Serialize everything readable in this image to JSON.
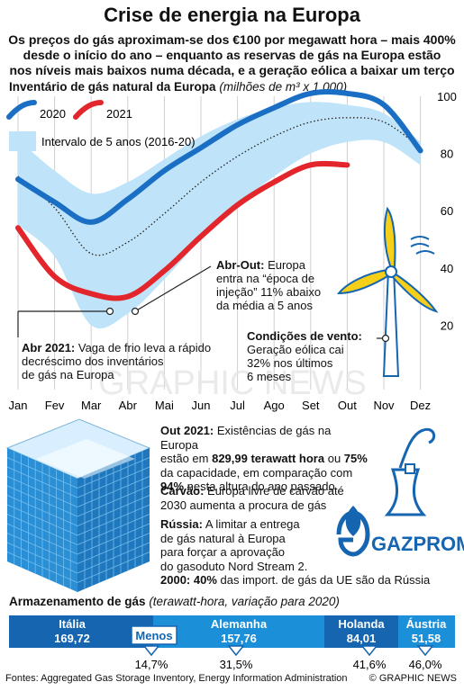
{
  "header": {
    "title": "Crise de energia na Europa",
    "subtitle_lines": [
      "Os preços do gás aproximam-se dos €100 por megawatt hora – mais 400%",
      "desde o início do ano – enquanto as reservas de gás na Europa estão",
      "nos níveis mais baixos numa década, e a geração eólica a baixar um terço"
    ]
  },
  "chart_data": {
    "type": "line",
    "title": "Inventário de gás natural da Europa",
    "unit": "(milhões de m³ x 1.000)",
    "categories": [
      "Jan",
      "Fev",
      "Mar",
      "Abr",
      "Mai",
      "Jun",
      "Jul",
      "Ago",
      "Set",
      "Out",
      "Nov",
      "Dez"
    ],
    "ylim": [
      0,
      100
    ],
    "yticks": [
      20,
      40,
      60,
      80,
      100
    ],
    "series": [
      {
        "name": "2020",
        "color": "#1a6fc4",
        "values": [
          71,
          63,
          56,
          64,
          74,
          82,
          90,
          96,
          101,
          101,
          97,
          81
        ]
      },
      {
        "name": "2021",
        "color": "#e3262b",
        "values": [
          54,
          37,
          31,
          30,
          39,
          51,
          62,
          70,
          76,
          76,
          null,
          null
        ]
      },
      {
        "name": "Intervalo de 5 anos (2016-20)",
        "color": "#bfe3f8",
        "type": "band",
        "upper": [
          85,
          74,
          66,
          70,
          78,
          86,
          92,
          96,
          98,
          97,
          94,
          84
        ],
        "lower": [
          55,
          44,
          20,
          24,
          36,
          50,
          62,
          72,
          80,
          84,
          84,
          76
        ]
      }
    ]
  },
  "legend": {
    "s2020": "2020",
    "s2021": "2021",
    "band": "Intervalo de 5 anos (2016-20)"
  },
  "annotations": {
    "abr_out": {
      "label": "Abr-Out:",
      "lines": [
        "Europa",
        "entra na “época de",
        "injeção” 11% abaixo",
        "da média a 5 anos"
      ],
      "first": "Europa"
    },
    "abr2021": {
      "label": "Abr 2021:",
      "lines": [
        " Vaga de frio leva a rápido",
        "decréscimo dos inventários",
        "de gás na Europa"
      ]
    },
    "vento": {
      "label": "Condições de vento:",
      "lines": [
        "Geração eólica cai",
        "32% nos últimos",
        "6 meses"
      ]
    }
  },
  "info": {
    "out2021": {
      "label": "Out 2021:",
      "lines": [
        " Existências de gás na Europa",
        "estão em ",
        "829,99 terawatt hora",
        " ou ",
        "75%",
        "da capacidade, em comparação com",
        "94%",
        " nesta altura do ano passado"
      ]
    },
    "carvao": {
      "label": "Carvão:",
      "lines": [
        " Europa livre de carvão até",
        "2030 aumenta a procura de gás"
      ]
    },
    "russia": {
      "label": "Rússia:",
      "lines": [
        " A limitar a entrega",
        "de gás natural à Europa",
        "para forçar a aprovação",
        "do gasoduto Nord Stream 2."
      ]
    },
    "y2000": {
      "label": "2000:",
      "pct": " 40%",
      "rest": " das import. de gás da UE são da Rússia"
    },
    "gazprom": "GAZPROM"
  },
  "storage": {
    "title": "Armazenamento de gás",
    "unit": "(terawatt-hora, variação para 2020)",
    "menos": "Menos",
    "countries": [
      {
        "name": "Itália",
        "value": "169,72",
        "change": "14,7%"
      },
      {
        "name": "Alemanha",
        "value": "157,76",
        "change": "31,5%"
      },
      {
        "name": "Holanda",
        "value": "84,01",
        "change": "41,6%"
      },
      {
        "name": "Áustria",
        "value": "51,58",
        "change": "46,0%"
      }
    ]
  },
  "watermark": "GRAPHIC NEWS",
  "footer": {
    "source": "Fontes: Aggregated Gas Storage Inventory, Energy Information Administration",
    "brand": "© GRAPHIC NEWS"
  }
}
